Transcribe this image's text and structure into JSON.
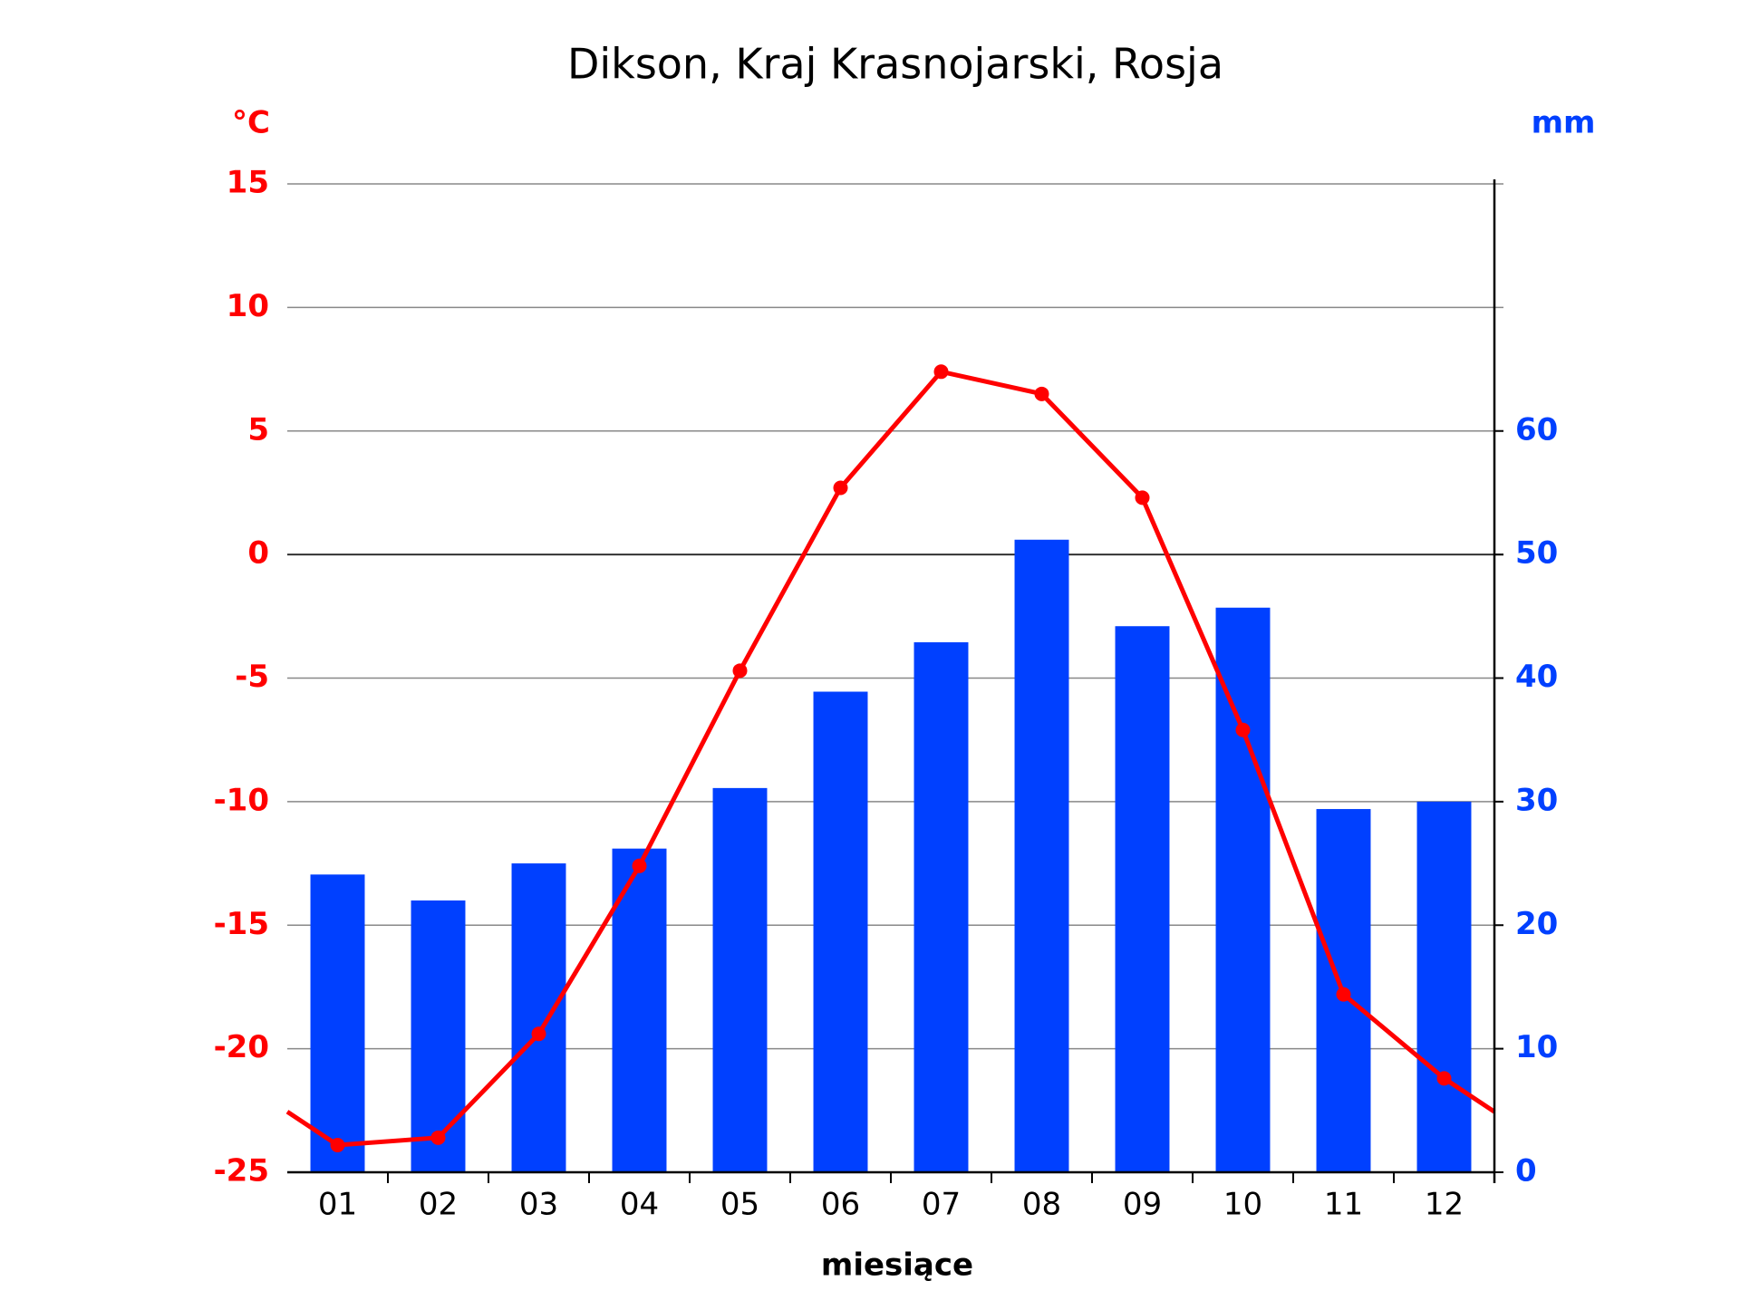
{
  "chart_data": {
    "type": "combo",
    "title": "Dikson, Kraj Krasnojarski, Rosja",
    "x_label": "miesiące",
    "y_label": "°C",
    "y2_label": "mm",
    "categories": [
      "01",
      "02",
      "03",
      "04",
      "05",
      "06",
      "07",
      "08",
      "09",
      "10",
      "11",
      "12"
    ],
    "series": [
      {
        "type": "bar",
        "axis": "y2",
        "color": "#0040ff",
        "values": [
          24.1,
          22.0,
          25.0,
          26.2,
          31.1,
          38.9,
          42.9,
          51.2,
          44.2,
          45.7,
          29.4,
          30.0
        ]
      },
      {
        "type": "line",
        "color": "#ff0000",
        "values": [
          -23.9,
          -23.6,
          -19.4,
          -12.6,
          -4.7,
          2.7,
          7.4,
          6.5,
          2.3,
          -7.1,
          -17.8,
          -21.2
        ]
      }
    ],
    "ylim": [
      -25,
      15
    ],
    "yticks": [
      -25,
      -20,
      -15,
      -10,
      -5,
      0,
      5,
      10,
      15
    ],
    "y2lim": [
      0,
      80
    ],
    "y2ticks": [
      0,
      10,
      20,
      30,
      40,
      50,
      60
    ],
    "y_color": "#ff0000",
    "y2_color": "#0040ff",
    "grid": true
  }
}
